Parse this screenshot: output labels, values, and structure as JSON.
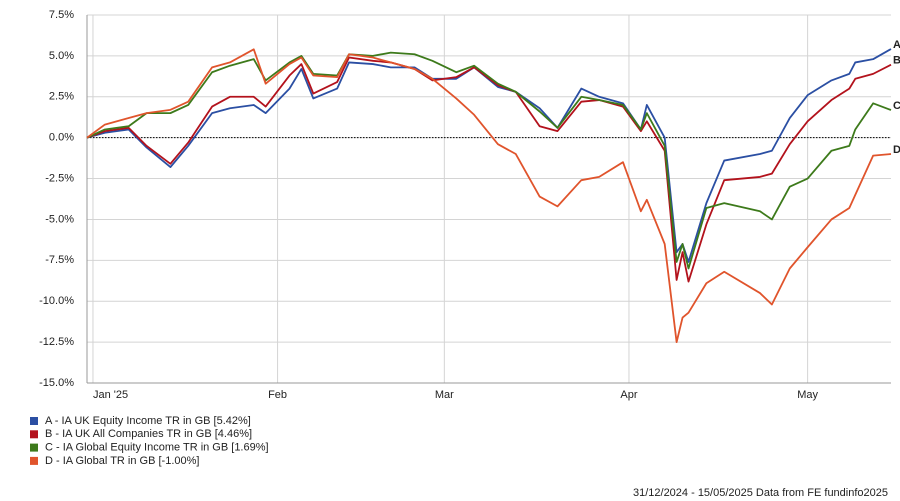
{
  "chart_data": {
    "type": "line",
    "x": [
      "2024-12-31",
      "2025-01-03",
      "2025-01-07",
      "2025-01-10",
      "2025-01-14",
      "2025-01-17",
      "2025-01-21",
      "2025-01-24",
      "2025-01-28",
      "2025-01-30",
      "2025-02-03",
      "2025-02-05",
      "2025-02-07",
      "2025-02-11",
      "2025-02-13",
      "2025-02-17",
      "2025-02-20",
      "2025-02-24",
      "2025-02-27",
      "2025-03-03",
      "2025-03-06",
      "2025-03-10",
      "2025-03-13",
      "2025-03-17",
      "2025-03-20",
      "2025-03-24",
      "2025-03-27",
      "2025-03-31",
      "2025-04-03",
      "2025-04-04",
      "2025-04-07",
      "2025-04-09",
      "2025-04-10",
      "2025-04-11",
      "2025-04-14",
      "2025-04-17",
      "2025-04-23",
      "2025-04-25",
      "2025-04-28",
      "2025-05-01",
      "2025-05-05",
      "2025-05-08",
      "2025-05-09",
      "2025-05-12",
      "2025-05-15"
    ],
    "series": [
      {
        "name": "A - IA UK Equity Income TR in GB [5.42%]",
        "end_label": "A",
        "color": "#2b4fa3",
        "values": [
          0,
          0.3,
          0.5,
          -0.6,
          -1.8,
          -0.5,
          1.5,
          1.8,
          2.0,
          1.5,
          3.0,
          4.2,
          2.4,
          3.0,
          4.6,
          4.5,
          4.3,
          4.3,
          3.6,
          3.6,
          4.3,
          3.1,
          2.8,
          1.8,
          0.6,
          3.0,
          2.5,
          2.1,
          0.5,
          2.0,
          0.0,
          -7.0,
          -6.5,
          -7.6,
          -4.0,
          -1.4,
          -1.0,
          -0.8,
          1.2,
          2.6,
          3.5,
          3.9,
          4.6,
          4.8,
          5.42
        ]
      },
      {
        "name": "B - IA UK All Companies TR in GB [4.46%]",
        "end_label": "B",
        "color": "#b3121c",
        "values": [
          0,
          0.4,
          0.6,
          -0.5,
          -1.6,
          -0.3,
          1.9,
          2.5,
          2.5,
          1.9,
          3.8,
          4.5,
          2.7,
          3.4,
          4.9,
          4.7,
          4.6,
          4.2,
          3.5,
          3.7,
          4.3,
          3.2,
          2.8,
          0.7,
          0.4,
          2.2,
          2.3,
          1.9,
          0.4,
          1.0,
          -0.8,
          -8.7,
          -7.0,
          -8.8,
          -5.3,
          -2.6,
          -2.4,
          -2.2,
          -0.4,
          1.0,
          2.3,
          3.0,
          3.6,
          3.9,
          4.46
        ]
      },
      {
        "name": "C - IA Global Equity Income TR in GB [1.69%]",
        "end_label": "C",
        "color": "#3d7a1b",
        "values": [
          0,
          0.5,
          0.7,
          1.5,
          1.5,
          2.0,
          4.0,
          4.4,
          4.8,
          3.5,
          4.6,
          5.0,
          3.9,
          3.8,
          5.1,
          5.0,
          5.2,
          5.1,
          4.7,
          4.0,
          4.4,
          3.3,
          2.8,
          1.6,
          0.6,
          2.5,
          2.3,
          2.0,
          0.5,
          1.5,
          -0.5,
          -7.6,
          -6.5,
          -8.0,
          -4.3,
          -4.0,
          -4.5,
          -5.0,
          -3.0,
          -2.5,
          -0.8,
          -0.5,
          0.5,
          2.1,
          1.69
        ]
      },
      {
        "name": "D - IA Global TR in GB [-1.00%]",
        "end_label": "D",
        "color": "#e0542c",
        "values": [
          0,
          0.8,
          1.2,
          1.5,
          1.7,
          2.2,
          4.3,
          4.6,
          5.4,
          3.3,
          4.5,
          4.9,
          3.8,
          3.7,
          5.1,
          4.9,
          4.6,
          4.2,
          3.6,
          2.4,
          1.4,
          -0.4,
          -1.0,
          -3.6,
          -4.2,
          -2.6,
          -2.4,
          -1.5,
          -4.5,
          -3.8,
          -6.5,
          -12.5,
          -11.0,
          -10.7,
          -8.9,
          -8.2,
          -9.5,
          -10.2,
          -8.0,
          -6.7,
          -5.0,
          -4.3,
          -3.5,
          -1.1,
          -1.0
        ]
      }
    ],
    "xlim": [
      "2024-12-31",
      "2025-05-15"
    ],
    "xticks": [
      {
        "value": "2025-01-01",
        "label": "Jan '25"
      },
      {
        "value": "2025-02-01",
        "label": "Feb"
      },
      {
        "value": "2025-03-01",
        "label": "Mar"
      },
      {
        "value": "2025-04-01",
        "label": "Apr"
      },
      {
        "value": "2025-05-01",
        "label": "May"
      }
    ],
    "ylim": [
      -15,
      7.5
    ],
    "yticks": [
      {
        "value": -15,
        "label": "-15.0%"
      },
      {
        "value": -12.5,
        "label": "-12.5%"
      },
      {
        "value": -10,
        "label": "-10.0%"
      },
      {
        "value": -7.5,
        "label": "-7.5%"
      },
      {
        "value": -5,
        "label": "-5.0%"
      },
      {
        "value": -2.5,
        "label": "-2.5%"
      },
      {
        "value": 0,
        "label": "0.0%"
      },
      {
        "value": 2.5,
        "label": "2.5%"
      },
      {
        "value": 5,
        "label": "5.0%"
      },
      {
        "value": 7.5,
        "label": "7.5%"
      }
    ],
    "grid": true,
    "footer": "31/12/2024 - 15/05/2025 Data from FE fundinfo2025"
  }
}
